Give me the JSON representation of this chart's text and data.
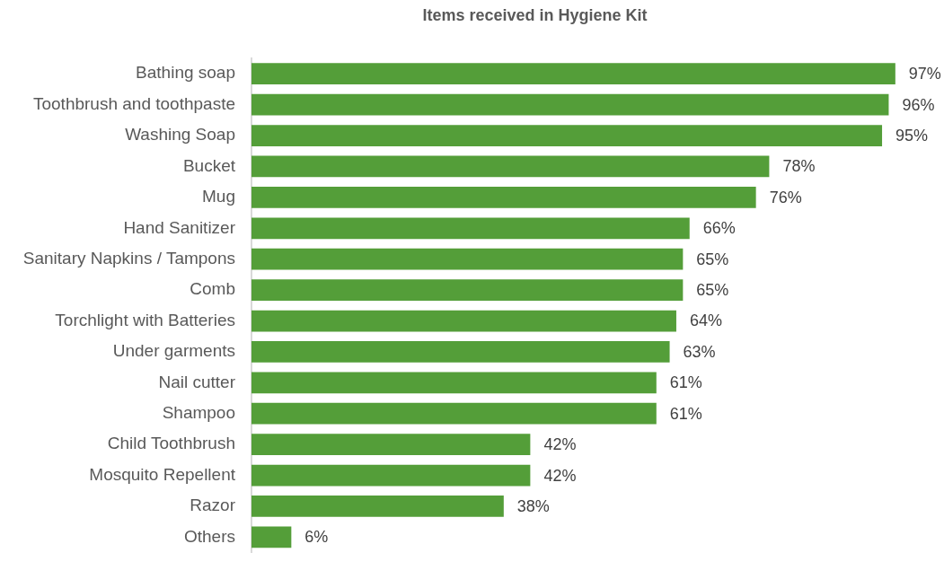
{
  "chart_data": {
    "type": "bar",
    "title": "Items received in Hygiene Kit",
    "orientation": "horizontal",
    "categories": [
      "Bathing soap",
      "Toothbrush and toothpaste",
      "Washing Soap",
      "Bucket",
      "Mug",
      "Hand Sanitizer",
      "Sanitary Napkins / Tampons",
      "Comb",
      "Torchlight with Batteries",
      "Under garments",
      "Nail cutter",
      "Shampoo",
      "Child Toothbrush",
      "Mosquito Repellent",
      "Razor",
      "Others"
    ],
    "values": [
      97,
      96,
      95,
      78,
      76,
      66,
      65,
      65,
      64,
      63,
      61,
      61,
      42,
      42,
      38,
      6
    ],
    "value_labels": [
      "97%",
      "96%",
      "95%",
      "78%",
      "76%",
      "66%",
      "65%",
      "65%",
      "64%",
      "63%",
      "61%",
      "61%",
      "42%",
      "42%",
      "38%",
      "6%"
    ],
    "color": "#549e39",
    "tick_labels": "y"
  }
}
